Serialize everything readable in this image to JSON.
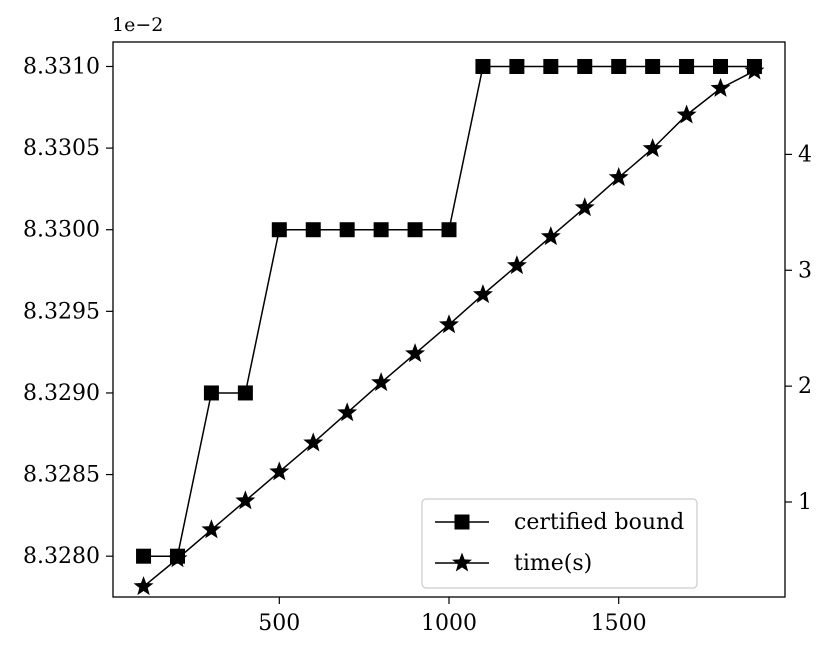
{
  "chart_data": {
    "type": "line",
    "title": "",
    "xlabel": "",
    "ylabel": "",
    "y2label": "",
    "xlim": [
      10,
      1990
    ],
    "ylim": [
      0.0832775,
      0.0833115
    ],
    "y2lim": [
      0.18,
      4.97
    ],
    "x_ticks": [
      500,
      1000,
      1500
    ],
    "x_tick_labels": [
      "500",
      "1000",
      "1500"
    ],
    "y_ticks": [
      0.08328,
      0.083285,
      0.08329,
      0.083295,
      0.0833,
      0.083305,
      0.08331
    ],
    "y_tick_labels": [
      "8.3280",
      "8.3285",
      "8.3290",
      "8.3295",
      "8.3300",
      "8.3305",
      "8.3310"
    ],
    "y_offset_label": "1e−2",
    "y2_ticks": [
      1,
      2,
      3,
      4
    ],
    "y2_tick_labels": [
      "1",
      "2",
      "3",
      "4"
    ],
    "grid": false,
    "legend_position": "lower-right",
    "x": [
      100,
      200,
      300,
      400,
      500,
      600,
      700,
      800,
      900,
      1000,
      1100,
      1200,
      1300,
      1400,
      1500,
      1600,
      1700,
      1800,
      1900
    ],
    "series": [
      {
        "name": "certified bound",
        "axis": "left",
        "marker": "square",
        "color": "#000000",
        "values": [
          0.08328,
          0.08328,
          0.08329,
          0.08329,
          0.0833,
          0.0833,
          0.0833,
          0.0833,
          0.0833,
          0.0833,
          0.08331,
          0.08331,
          0.08331,
          0.08331,
          0.08331,
          0.08331,
          0.08331,
          0.08331,
          0.08331
        ]
      },
      {
        "name": "time(s)",
        "axis": "right",
        "marker": "star",
        "color": "#000000",
        "values": [
          0.27,
          0.51,
          0.76,
          1.01,
          1.26,
          1.51,
          1.77,
          2.03,
          2.28,
          2.53,
          2.79,
          3.04,
          3.29,
          3.54,
          3.8,
          4.05,
          4.34,
          4.57,
          4.72
        ]
      }
    ]
  }
}
